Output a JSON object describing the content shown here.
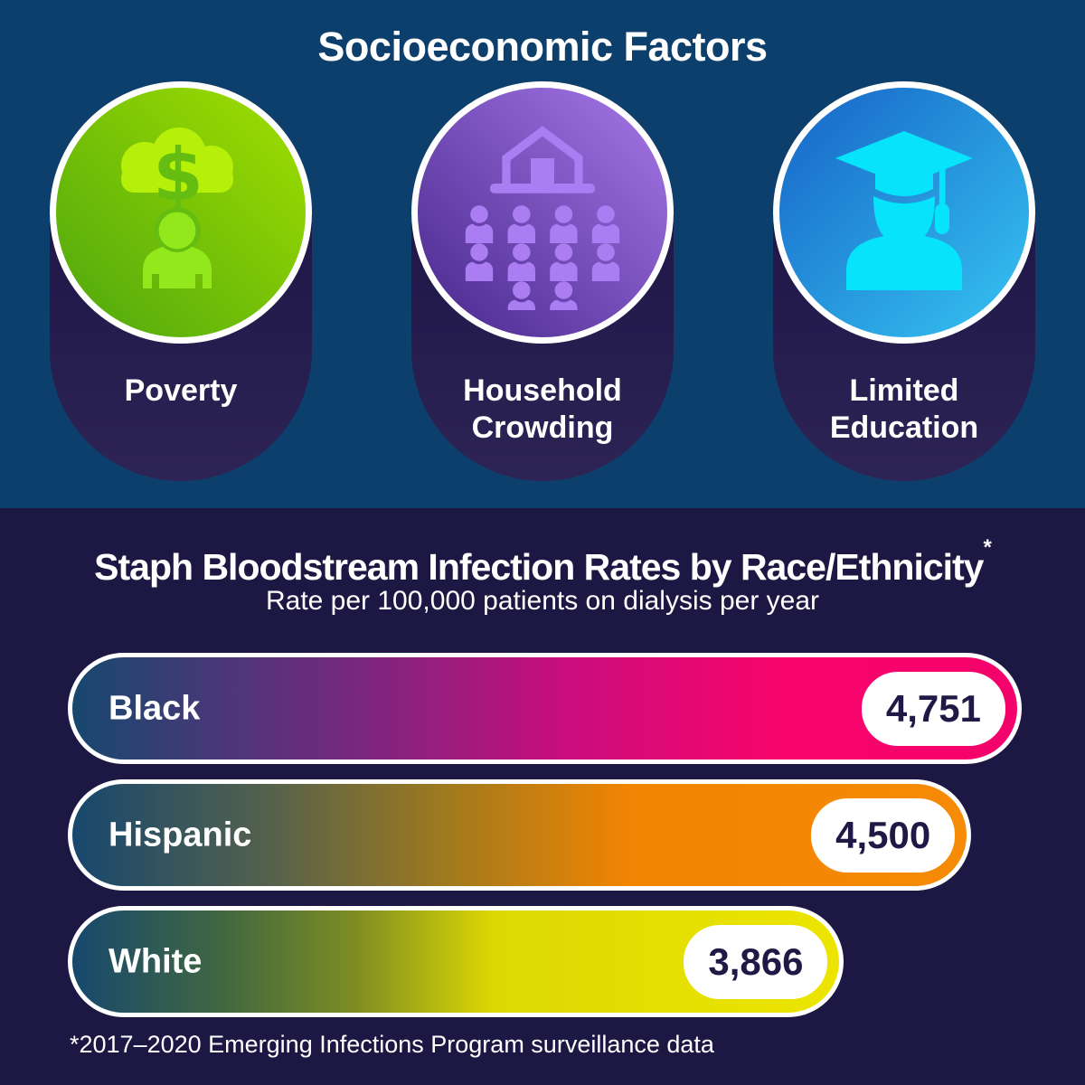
{
  "header": {
    "title": "Socioeconomic Factors"
  },
  "factors": {
    "items": [
      {
        "label": "Poverty",
        "icon": "poverty-money-cloud-icon"
      },
      {
        "label": "Household Crowding",
        "icon": "household-crowding-icon"
      },
      {
        "label": "Limited Education",
        "icon": "graduate-icon"
      }
    ]
  },
  "chart": {
    "title": "Staph Bloodstream Infection Rates by Race/Ethnicity",
    "footnote_marker": "*",
    "subtitle": "Rate per 100,000 patients on dialysis per year",
    "footnote": "*2017–2020 Emerging Infections Program surveillance data"
  },
  "chart_data": {
    "type": "bar",
    "orientation": "horizontal",
    "title": "Staph Bloodstream Infection Rates by Race/Ethnicity",
    "subtitle": "Rate per 100,000 patients on dialysis per year",
    "footnote": "*2017–2020 Emerging Infections Program surveillance data",
    "categories": [
      "Black",
      "Hispanic",
      "White"
    ],
    "values": [
      4751,
      4500,
      3866
    ],
    "value_labels": [
      "4,751",
      "4,500",
      "3,866"
    ],
    "xlabel": "",
    "ylabel": "",
    "bar_lengths_proportional_to_values": true,
    "bar_gradient_ends": [
      "#f4026b",
      "#f68b05",
      "#ece500"
    ],
    "bar_gradient_start": "#17486e"
  },
  "colors": {
    "top_background": "#0c3f6c",
    "bottom_background": "#1d1843",
    "card_pill": "#1b1546",
    "poverty_circle_gradient": [
      "#4da60e",
      "#a3e000"
    ],
    "household_circle_gradient": [
      "#46278b",
      "#a878ea"
    ],
    "education_circle_gradient": [
      "#1663c6",
      "#36c5f2"
    ],
    "text": "#ffffff",
    "value_badge_text": "#1e1a45"
  }
}
